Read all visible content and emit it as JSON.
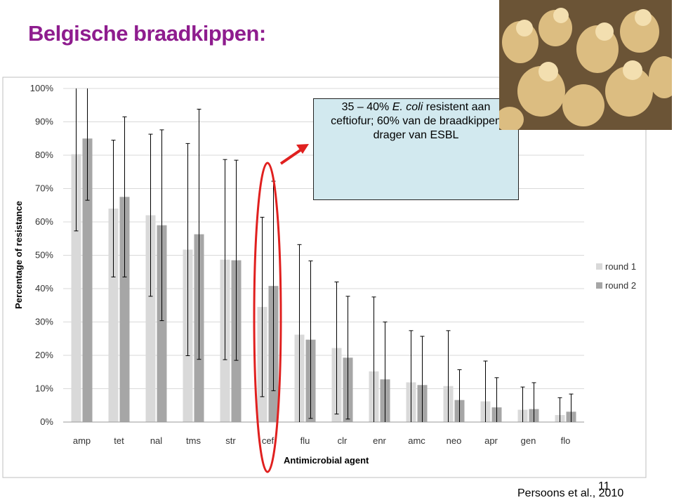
{
  "title": "Belgische braadkippen:",
  "callout": {
    "line1_start": "35 – 40%",
    "line1_italic": "E. coli",
    "line1_end": "resistent aan",
    "line2": "ceftiofur; 60% van de braadkippen",
    "line3": "drager van ESBL"
  },
  "citation": "Persoons et al., 2010",
  "page_number": "11",
  "chart_data": {
    "type": "bar",
    "x_label": "Antimicrobial agent",
    "y_label": "Percentage of resistance",
    "categories": [
      "amp",
      "tet",
      "nal",
      "tms",
      "str",
      "cef",
      "flu",
      "clr",
      "enr",
      "amc",
      "neo",
      "apr",
      "gen",
      "flo"
    ],
    "series": [
      {
        "name": "round 1",
        "color": "#d9d9d9",
        "values": [
          80.3,
          64,
          62,
          51.7,
          48.7,
          34.5,
          26.2,
          22.2,
          15.2,
          11.9,
          10.8,
          6.2,
          3.7,
          2.1
        ],
        "errors": [
          23,
          20.5,
          24.3,
          31.8,
          30,
          26.9,
          27,
          19.8,
          22.3,
          15.5,
          16.6,
          12.1,
          6.8,
          5.2
        ]
      },
      {
        "name": "round 2",
        "color": "#a6a6a6",
        "values": [
          85,
          67.5,
          59,
          56.3,
          48.5,
          40.8,
          24.7,
          19.3,
          12.8,
          11.1,
          6.6,
          4.4,
          3.9,
          3.1
        ],
        "errors": [
          18.5,
          24,
          28.6,
          37.5,
          30,
          31.4,
          23.6,
          18.4,
          17.2,
          14.6,
          9.1,
          8.9,
          7.9,
          5.3
        ]
      }
    ],
    "ylim": [
      0,
      100
    ],
    "yticks": [
      {
        "value": 0,
        "label": "0%"
      },
      {
        "value": 10,
        "label": "10%"
      },
      {
        "value": 20,
        "label": "20%"
      },
      {
        "value": 30,
        "label": "30%"
      },
      {
        "value": 40,
        "label": "40%"
      },
      {
        "value": 50,
        "label": "50%"
      },
      {
        "value": 60,
        "label": "60%"
      },
      {
        "value": 70,
        "label": "70%"
      },
      {
        "value": 80,
        "label": "80%"
      },
      {
        "value": 90,
        "label": "90%"
      },
      {
        "value": 100,
        "label": "100%"
      }
    ],
    "grid": true,
    "legend": "right"
  }
}
